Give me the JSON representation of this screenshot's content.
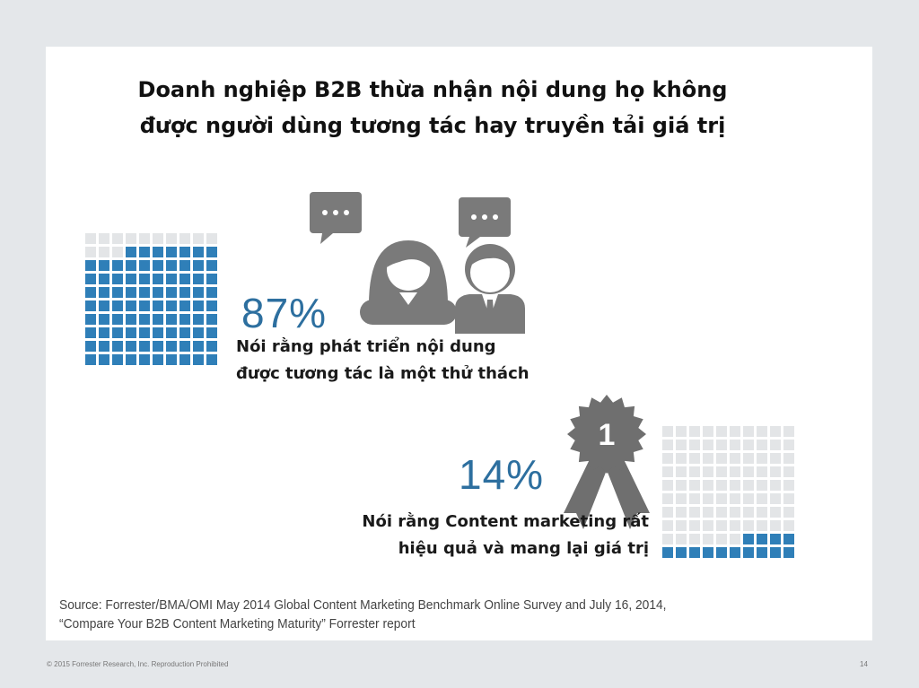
{
  "title": {
    "line1": "Doanh nghiệp B2B thừa nhận nội dung họ không",
    "line2": "được người dùng tương tác hay truyền tải giá trị"
  },
  "stat_engagement": {
    "percent_text": "87%",
    "percent_value": 87,
    "caption_line1": "Nói rằng phát triển nội dung",
    "caption_line2": "được tương tác là một thử thách",
    "icon": "people-chat-icon"
  },
  "stat_effective": {
    "percent_text": "14%",
    "percent_value": 14,
    "caption_line1": "Nói rằng Content marketing rất",
    "caption_line2": "hiệu quả và mang lại giá trị",
    "icon": "award-ribbon-icon",
    "badge_number": "1"
  },
  "source": {
    "line1": "Source: Forrester/BMA/OMI May 2014 Global Content Marketing Benchmark Online Survey and July 16, 2014,",
    "line2": "“Compare Your B2B Content Marketing Maturity” Forrester report"
  },
  "footer": {
    "copyright": "© 2015 Forrester Research, Inc. Reproduction Prohibited",
    "page_number": "14"
  },
  "colors": {
    "accent_blue": "#2f7fb8",
    "percent_blue": "#2d6f9f",
    "icon_gray": "#7a7a7a",
    "inactive_cell": "#e3e5e7"
  }
}
